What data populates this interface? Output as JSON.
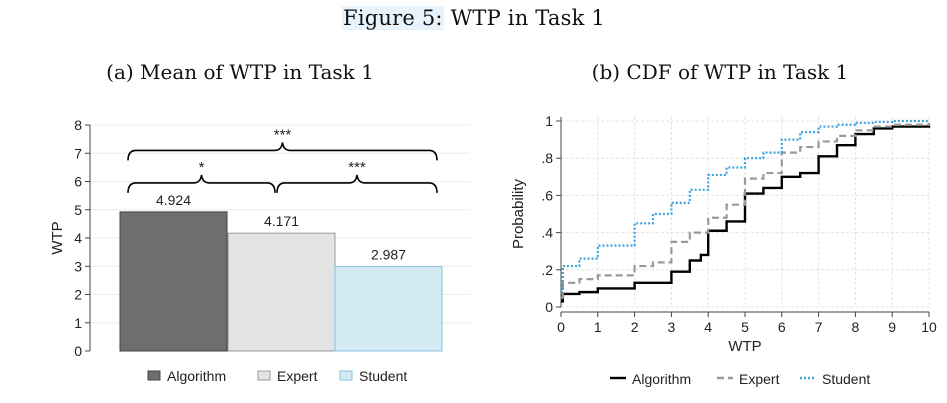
{
  "figure": {
    "label": "Figure 5:",
    "title": "WTP in Task 1"
  },
  "chart_data": [
    {
      "type": "bar",
      "title": "(a) Mean of WTP in Task 1",
      "ylabel": "WTP",
      "xlabel": "",
      "ylim": [
        0,
        8
      ],
      "yticks": [
        0,
        1,
        2,
        3,
        4,
        5,
        6,
        7,
        8
      ],
      "categories": [
        "Algorithm",
        "Expert",
        "Student"
      ],
      "values": [
        4.924,
        4.171,
        2.987
      ],
      "value_labels": [
        "4.924",
        "4.171",
        "2.987"
      ],
      "colors": [
        "#6e6e6e",
        "#e3e3e3",
        "#d4ebf3"
      ],
      "border_colors": [
        "#444444",
        "#9a9a9a",
        "#86c3dc"
      ],
      "significance": [
        {
          "from": "Algorithm",
          "to": "Student",
          "label": "***",
          "level": 7.1
        },
        {
          "from": "Algorithm",
          "to": "Expert",
          "label": "*",
          "level": 5.95
        },
        {
          "from": "Expert",
          "to": "Student",
          "label": "***",
          "level": 5.95
        }
      ],
      "legend": {
        "position": "bottom",
        "entries": [
          "Algorithm",
          "Expert",
          "Student"
        ]
      },
      "grid": true
    },
    {
      "type": "line",
      "title": "(b) CDF of WTP in Task 1",
      "xlabel": "WTP",
      "ylabel": "Probability",
      "xlim": [
        0,
        10
      ],
      "ylim": [
        0,
        1
      ],
      "xticks": [
        0,
        1,
        2,
        3,
        4,
        5,
        6,
        7,
        8,
        9,
        10
      ],
      "yticks": [
        0,
        0.2,
        0.4,
        0.6,
        0.8,
        1
      ],
      "ytick_labels": [
        "0",
        ".2",
        ".4",
        ".6",
        ".8",
        "1"
      ],
      "step": true,
      "grid": true,
      "legend": {
        "position": "bottom",
        "entries": [
          "Algorithm",
          "Expert",
          "Student"
        ]
      },
      "series": [
        {
          "name": "Algorithm",
          "color": "#000000",
          "dash": "solid",
          "x": [
            0,
            0.05,
            0.5,
            1,
            2,
            3,
            3.5,
            3.8,
            4,
            4.5,
            5,
            5.5,
            6,
            6.5,
            7,
            7.5,
            8,
            8.5,
            9,
            10
          ],
          "y": [
            0.03,
            0.07,
            0.08,
            0.1,
            0.13,
            0.19,
            0.25,
            0.28,
            0.41,
            0.46,
            0.61,
            0.64,
            0.7,
            0.72,
            0.81,
            0.87,
            0.93,
            0.96,
            0.97,
            0.98
          ]
        },
        {
          "name": "Expert",
          "color": "#999999",
          "dash": "dashed",
          "x": [
            0,
            0.05,
            0.5,
            1,
            2,
            2.5,
            3,
            3.5,
            4,
            4.5,
            5,
            5.5,
            6,
            6.5,
            7,
            7.5,
            8,
            8.5,
            9,
            10
          ],
          "y": [
            0.05,
            0.13,
            0.15,
            0.17,
            0.22,
            0.24,
            0.35,
            0.4,
            0.48,
            0.55,
            0.69,
            0.72,
            0.83,
            0.86,
            0.89,
            0.92,
            0.95,
            0.97,
            0.98,
            0.99
          ]
        },
        {
          "name": "Student",
          "color": "#3aa3dc",
          "dash": "dotted",
          "x": [
            0,
            0.05,
            0.5,
            1,
            2,
            2.5,
            3,
            3.5,
            4,
            4.5,
            5,
            5.5,
            6,
            6.5,
            7,
            7.5,
            8,
            8.5,
            9,
            10
          ],
          "y": [
            0.08,
            0.22,
            0.26,
            0.33,
            0.45,
            0.5,
            0.56,
            0.63,
            0.71,
            0.75,
            0.8,
            0.83,
            0.9,
            0.94,
            0.97,
            0.98,
            0.99,
            0.995,
            1.0,
            1.0
          ]
        }
      ]
    }
  ]
}
